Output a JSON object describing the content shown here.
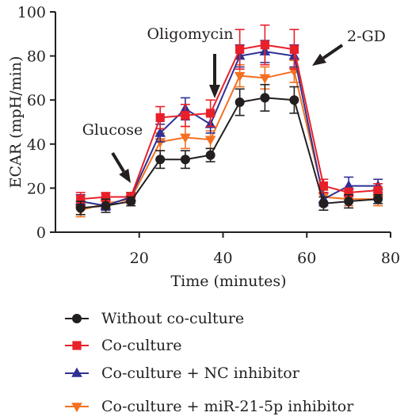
{
  "chart_data": {
    "type": "line",
    "xlabel": "Time (minutes)",
    "ylabel": "ECAR (mpH/min)",
    "xlim": [
      0,
      80
    ],
    "ylim": [
      0,
      100
    ],
    "xticks": [
      20,
      40,
      60,
      80
    ],
    "yticks": [
      0,
      20,
      40,
      60,
      80,
      100
    ],
    "grid": false,
    "legend_position": "bottom",
    "x": [
      6,
      12,
      18,
      25,
      31,
      37,
      44,
      50,
      57,
      64,
      70,
      77
    ],
    "series": [
      {
        "name": "Without co-culture",
        "color": "#231f20",
        "marker": "circle",
        "values": [
          11,
          12,
          14,
          33,
          33,
          35,
          59,
          61,
          60,
          13,
          14,
          15
        ],
        "errors": [
          3,
          3,
          2,
          4,
          4,
          3,
          6,
          6,
          6,
          3,
          3,
          2
        ]
      },
      {
        "name": "Co-culture",
        "color": "#e8202a",
        "marker": "square",
        "values": [
          15,
          16,
          16,
          52,
          53,
          54,
          83,
          85,
          83,
          21,
          18,
          19
        ],
        "errors": [
          3,
          2,
          2,
          5,
          5,
          6,
          9,
          9,
          9,
          3,
          2,
          3
        ]
      },
      {
        "name": "Co-culture + NC inhibitor",
        "color": "#2e3192",
        "marker": "triangle-up",
        "values": [
          14,
          12,
          16,
          45,
          56,
          49,
          80,
          82,
          80,
          15,
          21,
          21
        ],
        "errors": [
          3,
          2,
          2,
          4,
          5,
          4,
          5,
          5,
          5,
          3,
          4,
          3
        ]
      },
      {
        "name": "Co-culture + miR-21-5p inhibitor",
        "color": "#f37021",
        "marker": "triangle-down",
        "values": [
          10,
          13,
          15,
          41,
          43,
          42,
          71,
          70,
          73,
          16,
          15,
          15
        ],
        "errors": [
          3,
          2,
          2,
          4,
          5,
          4,
          5,
          5,
          5,
          3,
          3,
          3
        ]
      }
    ],
    "annotations": [
      {
        "text": "Glucose",
        "x": 18,
        "arrow_to_y": 20
      },
      {
        "text": "Oligomycin",
        "x": 37,
        "arrow_to_y": 61
      },
      {
        "text": "2-GD",
        "x": 57,
        "arrow_to_y": 76
      }
    ]
  }
}
